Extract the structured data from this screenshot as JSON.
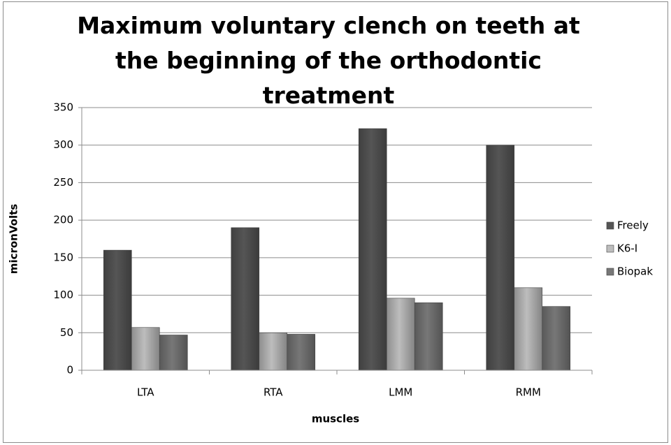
{
  "chart_data": {
    "type": "bar",
    "title": "Maximum voluntary clench on teeth at the beginning of the orthodontic treatment",
    "x_label": "muscles",
    "y_label": "micronVolts",
    "categories": [
      "LTA",
      "RTA",
      "LMM",
      "RMM"
    ],
    "series": [
      {
        "name": "Freely",
        "color": "#555555",
        "values": [
          160,
          190,
          322,
          300
        ]
      },
      {
        "name": "K6-I",
        "color": "#bdbdbd",
        "values": [
          57,
          50,
          96,
          110
        ]
      },
      {
        "name": "Biopak",
        "color": "#777777",
        "values": [
          47,
          48,
          90,
          85
        ]
      }
    ],
    "ylim": [
      0,
      350
    ],
    "yticks": [
      0,
      50,
      100,
      150,
      200,
      250,
      300,
      350
    ],
    "grid": true,
    "legend": "right"
  }
}
